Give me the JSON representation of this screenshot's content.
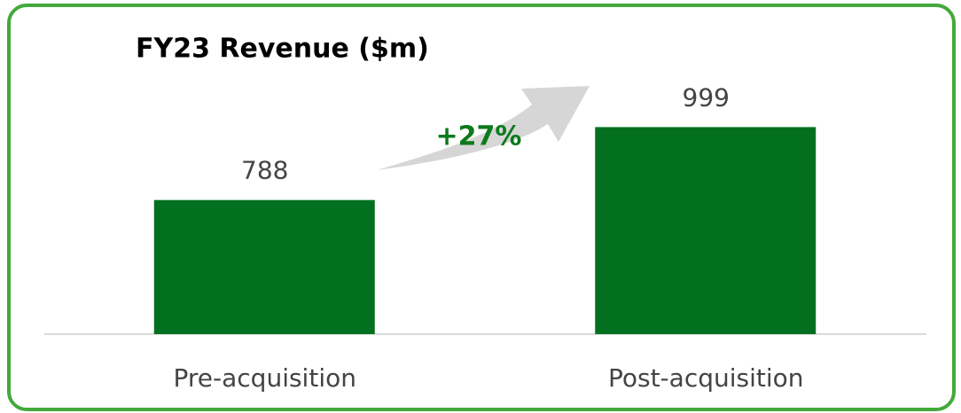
{
  "chart_data": {
    "type": "bar",
    "title": "FY23 Revenue ($m)",
    "categories": [
      "Pre-acquisition",
      "Post-acquisition"
    ],
    "values": [
      788,
      999
    ],
    "color": "#037020",
    "ylim": [
      400,
      1000
    ],
    "annotations": [
      "+27%"
    ]
  }
}
